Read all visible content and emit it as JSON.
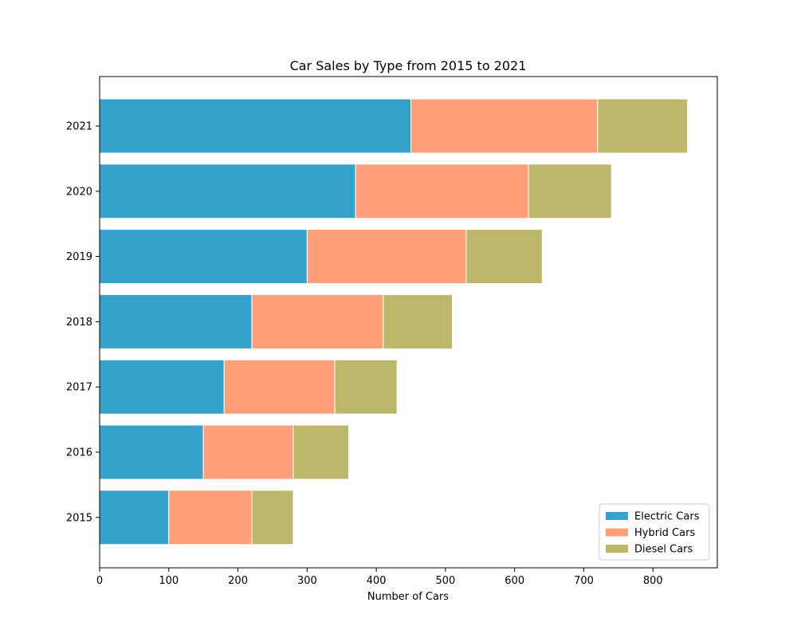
{
  "chart_data": {
    "type": "bar",
    "orientation": "horizontal",
    "stacked": true,
    "title": "Car Sales by Type from 2015 to 2021",
    "xlabel": "Number of Cars",
    "ylabel": "",
    "categories": [
      "2015",
      "2016",
      "2017",
      "2018",
      "2019",
      "2020",
      "2021"
    ],
    "series": [
      {
        "name": "Electric Cars",
        "color": "#35a2cc",
        "values": [
          100,
          150,
          180,
          220,
          300,
          370,
          450
        ]
      },
      {
        "name": "Hybrid Cars",
        "color": "#ffa07a",
        "values": [
          120,
          130,
          160,
          190,
          230,
          250,
          270
        ]
      },
      {
        "name": "Diesel Cars",
        "color": "#bdb76b",
        "values": [
          60,
          80,
          90,
          100,
          110,
          120,
          130
        ]
      }
    ],
    "xlim": [
      0,
      893
    ],
    "xticks": [
      0,
      100,
      200,
      300,
      400,
      500,
      600,
      700,
      800
    ],
    "grid": false,
    "legend": "lower-right"
  }
}
